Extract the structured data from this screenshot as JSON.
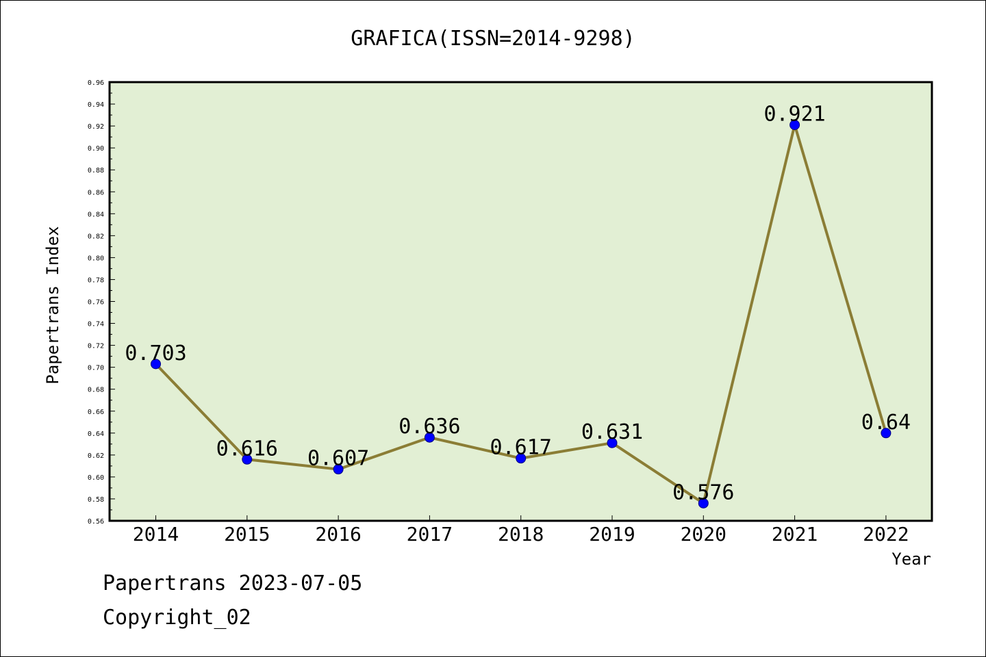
{
  "chart_data": {
    "type": "line",
    "title": "GRAFICA(ISSN=2014-9298)",
    "xlabel": "Year",
    "ylabel": "Papertrans Index",
    "categories": [
      "2014",
      "2015",
      "2016",
      "2017",
      "2018",
      "2019",
      "2020",
      "2021",
      "2022"
    ],
    "series": [
      {
        "values": [
          0.703,
          0.616,
          0.607,
          0.636,
          0.617,
          0.631,
          0.576,
          0.921,
          0.64
        ],
        "data_labels": [
          "0.703",
          "0.616",
          "0.607",
          "0.636",
          "0.617",
          "0.631",
          "0.576",
          "0.921",
          "0.64"
        ]
      }
    ],
    "ylim": [
      0.56,
      0.96
    ],
    "yticks": [
      "0.56",
      "0.58",
      "0.60",
      "0.62",
      "0.64",
      "0.66",
      "0.68",
      "0.70",
      "0.72",
      "0.74",
      "0.76",
      "0.78",
      "0.80",
      "0.82",
      "0.84",
      "0.86",
      "0.88",
      "0.90",
      "0.92",
      "0.94",
      "0.96"
    ],
    "grid": false,
    "legend": "none",
    "colors": {
      "plot_background": "#e2efd4",
      "line": "#8b7d35",
      "marker_fill": "#0000ff",
      "marker_edge": "#000080"
    }
  },
  "footer": {
    "source_line": "Papertrans 2023-07-05",
    "copyright_line": "Copyright_02"
  }
}
